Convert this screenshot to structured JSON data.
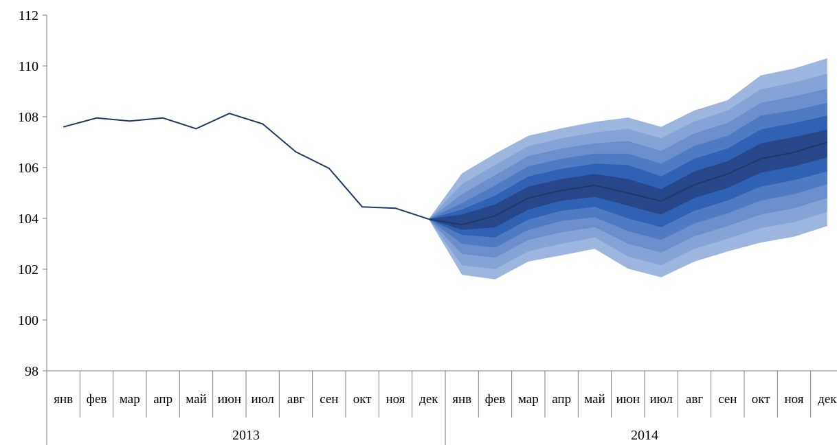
{
  "chart_data": {
    "type": "area",
    "title": "",
    "xlabel": "",
    "ylabel": "",
    "ylim": [
      98,
      112
    ],
    "yticks": [
      98,
      100,
      102,
      104,
      106,
      108,
      110,
      112
    ],
    "grid": false,
    "legend": "none",
    "categories": [
      "янв",
      "фев",
      "мар",
      "апр",
      "май",
      "июн",
      "июл",
      "авг",
      "сен",
      "окт",
      "ноя",
      "дек",
      "янв",
      "фев",
      "мар",
      "апр",
      "май",
      "июн",
      "июл",
      "авг",
      "сен",
      "окт",
      "ноя",
      "дек"
    ],
    "years": [
      {
        "label": "2013",
        "start": 0,
        "end": 11
      },
      {
        "label": "2014",
        "start": 12,
        "end": 23
      }
    ],
    "actual": [
      107.6,
      107.95,
      107.83,
      107.95,
      107.53,
      108.13,
      107.72,
      106.62,
      105.97,
      104.45,
      104.4,
      103.97
    ],
    "forecast_start_index": 11,
    "forecast_center": [
      103.97,
      103.75,
      104.1,
      104.8,
      105.1,
      105.3,
      105.0,
      104.68,
      105.33,
      105.75,
      106.35,
      106.6,
      107.0
    ],
    "fan_bands": {
      "upper": [
        [
          103.97,
          105.77,
          106.55,
          107.25,
          107.55,
          107.8,
          107.97,
          107.6,
          108.25,
          108.65,
          109.63,
          109.9,
          110.3
        ],
        [
          103.97,
          105.35,
          106.1,
          106.85,
          107.15,
          107.38,
          107.53,
          107.15,
          107.82,
          108.25,
          109.08,
          109.35,
          109.7
        ],
        [
          103.97,
          104.95,
          105.7,
          106.45,
          106.75,
          106.95,
          107.05,
          106.65,
          107.35,
          107.75,
          108.55,
          108.8,
          109.1
        ],
        [
          103.97,
          104.6,
          105.3,
          106.05,
          106.35,
          106.55,
          106.55,
          106.15,
          106.85,
          107.25,
          108.05,
          108.25,
          108.55
        ],
        [
          103.97,
          104.35,
          104.9,
          105.65,
          105.95,
          106.15,
          106.1,
          105.65,
          106.35,
          106.75,
          107.5,
          107.75,
          108.05
        ],
        [
          103.97,
          104.15,
          104.55,
          105.25,
          105.55,
          105.75,
          105.55,
          105.15,
          105.85,
          106.25,
          106.95,
          107.2,
          107.5
        ]
      ],
      "lower": [
        [
          103.97,
          101.78,
          101.6,
          102.3,
          102.55,
          102.8,
          102.02,
          101.68,
          102.3,
          102.7,
          103.05,
          103.28,
          103.7
        ],
        [
          103.97,
          102.15,
          102.0,
          102.7,
          103.0,
          103.25,
          102.5,
          102.15,
          102.8,
          103.2,
          103.62,
          103.85,
          104.25
        ],
        [
          103.97,
          102.6,
          102.45,
          103.15,
          103.45,
          103.65,
          103.0,
          102.65,
          103.3,
          103.7,
          104.15,
          104.4,
          104.8
        ],
        [
          103.97,
          103.0,
          102.85,
          103.55,
          103.9,
          104.05,
          103.5,
          103.15,
          103.8,
          104.2,
          104.7,
          104.95,
          105.35
        ],
        [
          103.97,
          103.35,
          103.25,
          103.95,
          104.3,
          104.45,
          104.0,
          103.65,
          104.3,
          104.7,
          105.25,
          105.5,
          105.85
        ],
        [
          103.97,
          103.55,
          103.65,
          104.35,
          104.7,
          104.85,
          104.5,
          104.15,
          104.8,
          105.2,
          105.8,
          106.05,
          106.4
        ]
      ]
    },
    "colors": {
      "line": "#1f3864",
      "bands": [
        "#9cb6e0",
        "#84a4d8",
        "#6a8fcc",
        "#4f7bc2",
        "#2f62b3",
        "#26478a"
      ]
    }
  }
}
